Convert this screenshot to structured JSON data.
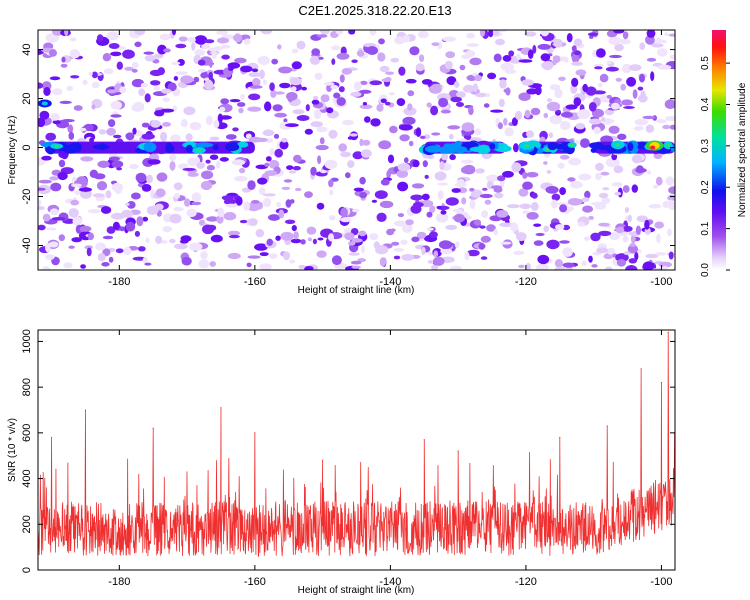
{
  "title": "C2E1.2025.318.22.20.E13",
  "chart_data": [
    {
      "type": "heatmap",
      "name": "spectrogram",
      "xlabel": "Height of straight line (km)",
      "ylabel": "Frequency (Hz)",
      "xlim": [
        -192,
        -98
      ],
      "ylim": [
        -50,
        48
      ],
      "xticks": [
        -180,
        -160,
        -140,
        -120,
        -100
      ],
      "yticks": [
        -40,
        -20,
        0,
        20,
        40
      ],
      "colorbar": {
        "label": "Normalized spectral amplitude",
        "range": [
          0.0,
          0.58
        ],
        "ticks": [
          "0.0",
          "0.1",
          "0.2",
          "0.3",
          "0.4",
          "0.5"
        ]
      },
      "band": {
        "frequency_hz": 0,
        "strong_segments_km": [
          [
            -191,
            -160
          ],
          [
            -135,
            -123
          ],
          [
            -120,
            -113
          ],
          [
            -110,
            -98
          ]
        ],
        "peak_x_km": -101,
        "peak_amplitude": 0.58,
        "side_blob_x_km": -191,
        "side_blob_frequency_hz": 18
      }
    },
    {
      "type": "line",
      "name": "snr",
      "xlabel": "Height of straight line (km)",
      "ylabel": "SNR (10 * v/v)",
      "xlim": [
        -192,
        -98
      ],
      "ylim": [
        0,
        1050
      ],
      "xticks": [
        -180,
        -160,
        -140,
        -120,
        -100
      ],
      "yticks": [
        0,
        200,
        400,
        600,
        800,
        1000
      ],
      "color": "#f03030",
      "baseline": 180,
      "peaks": [
        {
          "x": -190,
          "y": 580
        },
        {
          "x": -185,
          "y": 700
        },
        {
          "x": -175,
          "y": 620
        },
        {
          "x": -165,
          "y": 710
        },
        {
          "x": -160,
          "y": 600
        },
        {
          "x": -150,
          "y": 480
        },
        {
          "x": -135,
          "y": 570
        },
        {
          "x": -130,
          "y": 520
        },
        {
          "x": -115,
          "y": 580
        },
        {
          "x": -108,
          "y": 630
        },
        {
          "x": -103,
          "y": 880
        },
        {
          "x": -100,
          "y": 820
        },
        {
          "x": -99,
          "y": 1040
        }
      ]
    }
  ]
}
